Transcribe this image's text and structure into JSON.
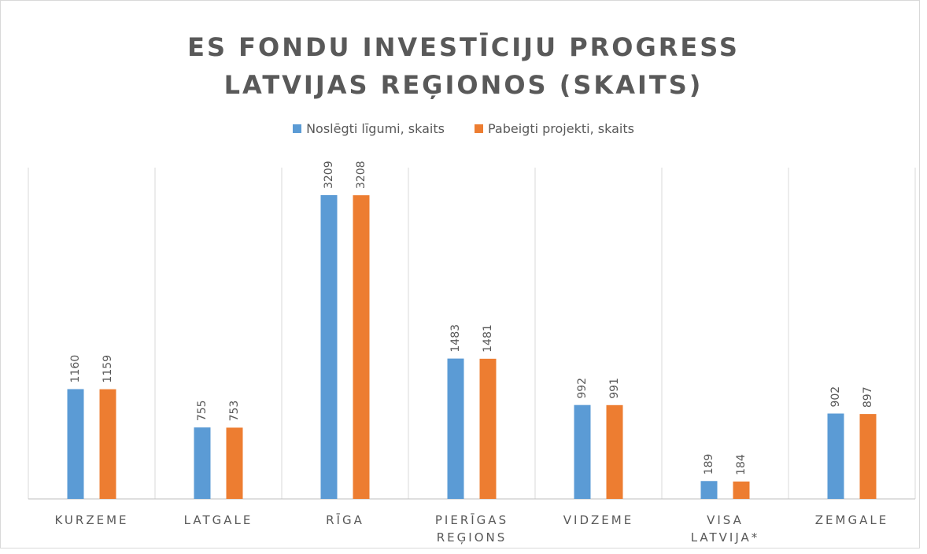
{
  "chart_data": {
    "type": "bar",
    "title": "ES FONDU INVESTĪCIJU PROGRESS LATVIJAS REĢIONOS (SKAITS)",
    "categories": [
      "KURZEME",
      "LATGALE",
      "RĪGA",
      "PIERĪGAS REĢIONS",
      "VIDZEME",
      "VISA LATVIJA*",
      "ZEMGALE"
    ],
    "series": [
      {
        "name": "Noslēgti līgumi, skaits",
        "color": "#5b9bd5",
        "values": [
          1160,
          755,
          3209,
          1483,
          992,
          189,
          902
        ]
      },
      {
        "name": "Pabeigti projekti, skaits",
        "color": "#ed7d31",
        "values": [
          1159,
          753,
          3208,
          1481,
          991,
          184,
          897
        ]
      }
    ],
    "ylim": [
      0,
      3500
    ],
    "legend": "top"
  }
}
